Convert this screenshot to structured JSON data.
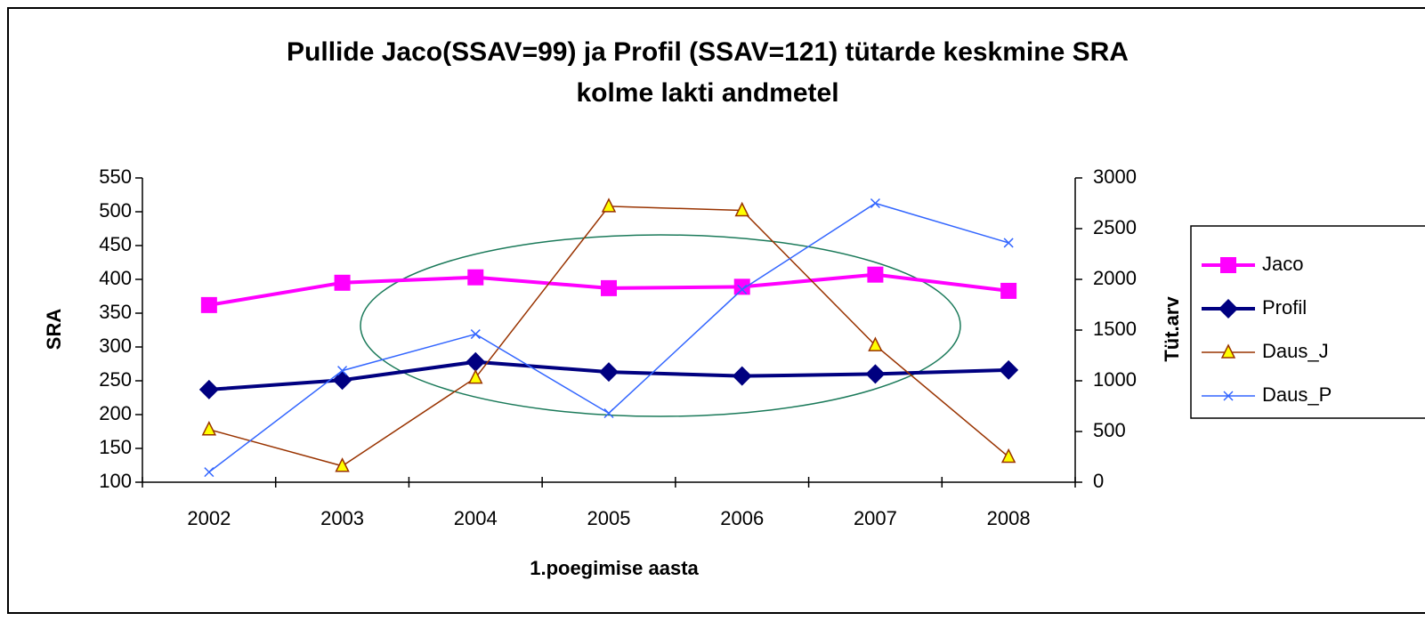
{
  "chart_data": {
    "type": "line",
    "title": [
      "Pullide Jaco(SSAV=99) ja Profil (SSAV=121) tütarde keskmine SRA",
      "kolme lakti andmetel"
    ],
    "x_label": "1.poegimise aasta",
    "y_label": "SRA",
    "y2_label": "Tüt.arv",
    "categories": [
      "2002",
      "2003",
      "2004",
      "2005",
      "2006",
      "2007",
      "2008"
    ],
    "ylim": [
      100,
      550
    ],
    "yticks": [
      100,
      150,
      200,
      250,
      300,
      350,
      400,
      450,
      500,
      550
    ],
    "y2lim": [
      0,
      3000
    ],
    "y2ticks": [
      0,
      500,
      1000,
      1500,
      2000,
      2500,
      3000
    ],
    "legend": "right",
    "series": [
      {
        "name": "Jaco",
        "color": "#ff00ff",
        "marker": "square",
        "values": [
          362,
          395,
          403,
          387,
          389,
          407,
          383
        ]
      },
      {
        "name": "Profil",
        "color": "#000080",
        "marker": "diamond",
        "values": [
          237,
          251,
          278,
          263,
          257,
          260,
          266
        ]
      },
      {
        "name": "Daus_J",
        "color": "#993300",
        "marker": "triangle",
        "axis": "y2",
        "values": [
          520,
          160,
          1030,
          2720,
          2680,
          1350,
          250
        ]
      },
      {
        "name": "Daus_P",
        "color": "#3366ff",
        "marker": "x",
        "axis": "y2",
        "values": [
          100,
          1100,
          1460,
          680,
          1900,
          2750,
          2360
        ]
      }
    ]
  }
}
